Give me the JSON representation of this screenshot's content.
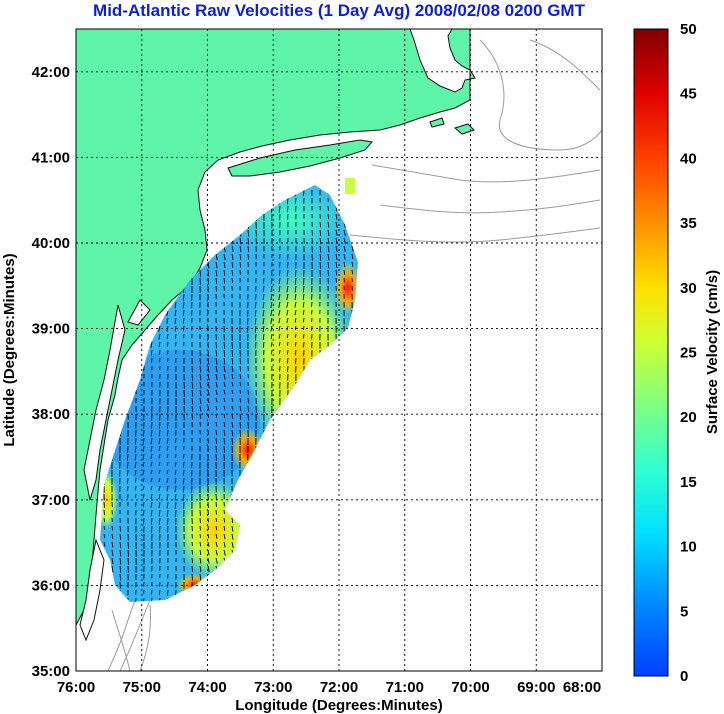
{
  "title": "Mid-Atlantic Raw Velocities (1 Day Avg) 2008/02/08 0200 GMT",
  "x_axis": {
    "label": "Longitude (Degrees:Minutes)",
    "ticks": [
      "76:00",
      "75:00",
      "74:00",
      "73:00",
      "72:00",
      "71:00",
      "70:00",
      "69:00",
      "68:00"
    ]
  },
  "y_axis": {
    "label": "Latitude (Degrees:Minutes)",
    "ticks": [
      "35:00",
      "36:00",
      "37:00",
      "38:00",
      "39:00",
      "40:00",
      "41:00",
      "42:00"
    ]
  },
  "colorbar": {
    "label": "Surface Velocity (cm/s)",
    "ticks": [
      "0",
      "5",
      "10",
      "15",
      "20",
      "25",
      "30",
      "35",
      "40",
      "45",
      "50"
    ],
    "min": 0,
    "max": 50
  },
  "colors": {
    "land": "#5ff5a8",
    "title": "#0b1ee0",
    "coastline": "#111111",
    "bathymetry": "#9a9a9a"
  },
  "chart_data": {
    "type": "heatmap",
    "lon_range": [
      -76,
      -68
    ],
    "lat_range": [
      35,
      42.5
    ],
    "grid": true,
    "colormap": "jet",
    "vmin": 0,
    "vmax": 50
  }
}
